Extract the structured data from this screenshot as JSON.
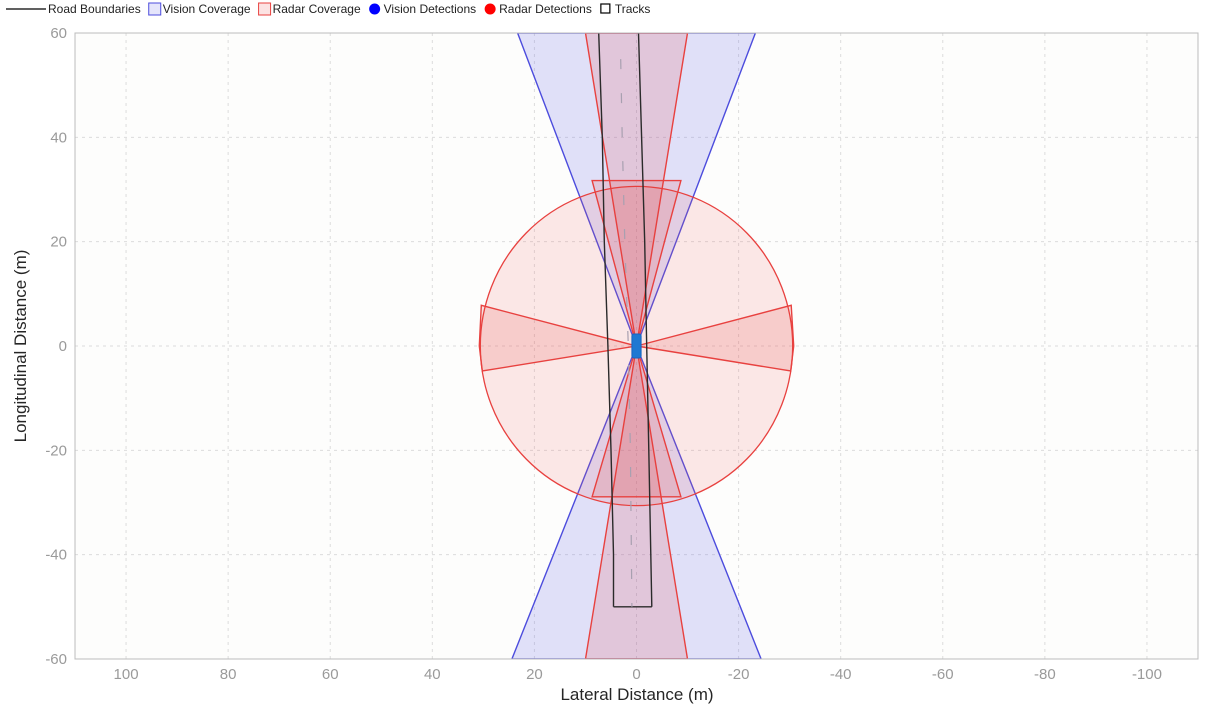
{
  "chart_data": {
    "type": "scatter",
    "xlabel": "Lateral Distance (m)",
    "ylabel": "Longitudinal Distance (m)",
    "xlim": [
      110,
      -110
    ],
    "ylim": [
      -60,
      60
    ],
    "x_ticks": [
      100,
      80,
      60,
      40,
      20,
      0,
      -20,
      -40,
      -60,
      -80,
      -100
    ],
    "y_ticks": [
      60,
      40,
      20,
      0,
      -20,
      -40,
      -60
    ],
    "grid": true,
    "legend_position": "top-left",
    "legend": [
      {
        "label": "Road Boundaries",
        "kind": "line",
        "color": "#000000"
      },
      {
        "label": "Vision Coverage",
        "kind": "patch",
        "color": "#4c4cdd"
      },
      {
        "label": "Radar Coverage",
        "kind": "patch",
        "color": "#e8413f"
      },
      {
        "label": "Vision Detections",
        "kind": "dot",
        "color": "#0000ff"
      },
      {
        "label": "Radar Detections",
        "kind": "dot",
        "color": "#ff0000"
      },
      {
        "label": "Tracks",
        "kind": "square",
        "color": "#000000"
      }
    ],
    "radar_coverage": {
      "circle_radius": 30.6,
      "sectors": [
        {
          "name": "front-long-range",
          "points": [
            [
              0,
              0
            ],
            [
              -10,
              60
            ],
            [
              10,
              60
            ]
          ]
        },
        {
          "name": "rear-long-range",
          "points": [
            [
              0,
              0
            ],
            [
              -10,
              -60
            ],
            [
              10,
              -60
            ]
          ]
        },
        {
          "name": "front-short-range",
          "points": [
            [
              0,
              0
            ],
            [
              8.7,
              31.7
            ],
            [
              -8.7,
              31.7
            ]
          ]
        },
        {
          "name": "rear-short-range",
          "points": [
            [
              0,
              0
            ],
            [
              8.7,
              -28.9
            ],
            [
              -8.7,
              -28.9
            ]
          ]
        },
        {
          "name": "left-side",
          "points": [
            [
              0,
              0
            ],
            [
              30.4,
              7.8
            ],
            [
              30.8,
              0
            ],
            [
              30.2,
              -4.8
            ]
          ]
        },
        {
          "name": "right-side",
          "points": [
            [
              0,
              0
            ],
            [
              -30.3,
              7.8
            ],
            [
              -30.8,
              0
            ],
            [
              -30.2,
              -4.8
            ]
          ]
        }
      ]
    },
    "vision_coverage": {
      "sectors": [
        {
          "name": "front-camera",
          "points": [
            [
              0,
              0
            ],
            [
              23.3,
              60
            ],
            [
              -23.3,
              60
            ]
          ]
        },
        {
          "name": "rear-camera",
          "points": [
            [
              0,
              0
            ],
            [
              24.4,
              -60
            ],
            [
              -24.4,
              -60
            ]
          ]
        }
      ]
    },
    "road_boundaries": [
      [
        [
          7.4,
          60
        ],
        [
          6.7,
          40
        ],
        [
          6.3,
          20
        ],
        [
          5.6,
          0
        ],
        [
          5.0,
          -20
        ],
        [
          4.5,
          -40
        ],
        [
          4.5,
          -50
        ]
      ],
      [
        [
          -0.4,
          60
        ],
        [
          -1.0,
          40
        ],
        [
          -1.6,
          20
        ],
        [
          -2.0,
          0
        ],
        [
          -2.4,
          -20
        ],
        [
          -2.8,
          -40
        ],
        [
          -3.0,
          -50
        ]
      ]
    ],
    "road_end_cap": [
      [
        4.5,
        -50
      ],
      [
        -3.0,
        -50
      ]
    ],
    "lane_marking": [
      [
        3.1,
        55
      ],
      [
        2.8,
        40
      ],
      [
        2.3,
        20
      ],
      [
        1.6,
        0
      ],
      [
        1.2,
        -20
      ],
      [
        1.0,
        -40
      ],
      [
        0.9,
        -50
      ]
    ],
    "ego_vehicle": {
      "x": 0,
      "y": 0,
      "width": 1.8,
      "length": 4.6,
      "color": "#1e78d2"
    },
    "vision_detections": [],
    "radar_detections": [],
    "tracks": []
  }
}
